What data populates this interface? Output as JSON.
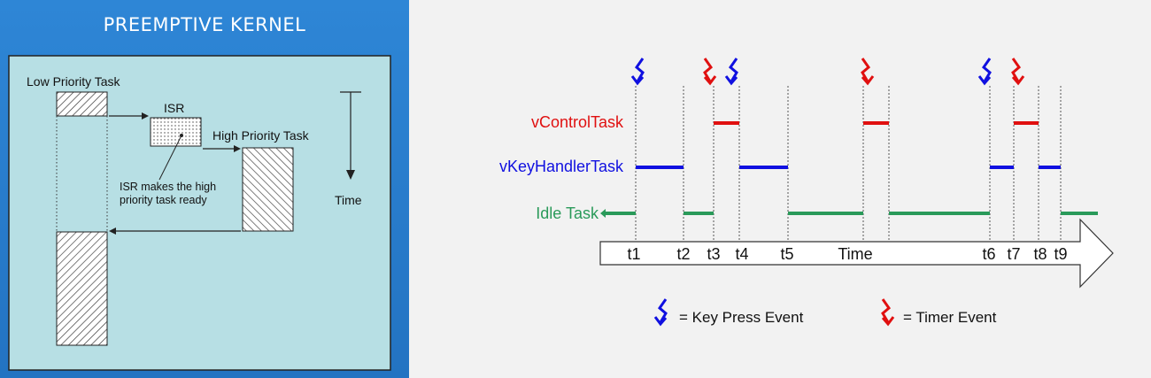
{
  "left_panel": {
    "title": "PREEMPTIVE KERNEL",
    "low_priority_label": "Low Priority Task",
    "isr_label": "ISR",
    "high_priority_label": "High Priority Task",
    "isr_note_line1": "ISR makes the high",
    "isr_note_line2": "priority task ready",
    "time_label": "Time"
  },
  "right_panel": {
    "tasks": [
      {
        "name": "vControlTask",
        "color": "#e01010"
      },
      {
        "name": "vKeyHandlerTask",
        "color": "#1010e0"
      },
      {
        "name": "Idle Task",
        "color": "#2a9a5a"
      }
    ],
    "ticks": [
      "t1",
      "t2",
      "t3",
      "t4",
      "t5",
      "t6",
      "t7",
      "t8",
      "t9"
    ],
    "time_label": "Time",
    "legend": {
      "key_press": "= Key Press Event",
      "timer": "= Timer Event"
    },
    "colors": {
      "key_press_event": "#1010e0",
      "timer_event": "#e01010",
      "left_bg": "#2b7fd0",
      "left_inner": "#b7dfe4"
    }
  }
}
